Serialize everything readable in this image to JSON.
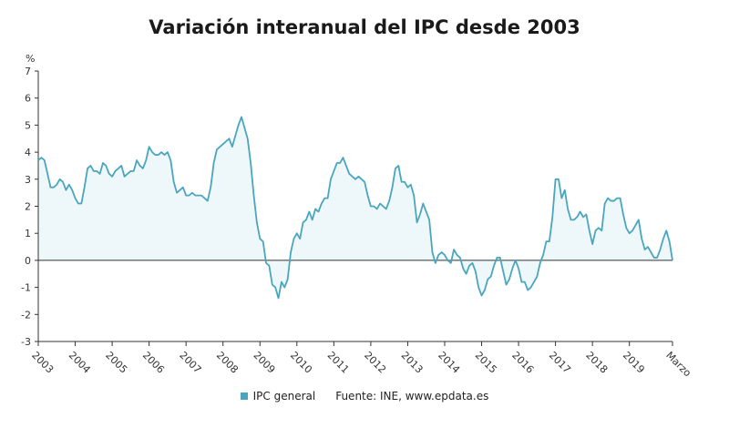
{
  "title": "Variación interanual del IPC desde 2003",
  "legend": {
    "series_label": "IPC general",
    "source": "Fuente: INE, www.epdata.es"
  },
  "colors": {
    "line": "#4aa6bf",
    "fill": "#eef7fa",
    "axis": "#333333",
    "zero": "#333333"
  },
  "chart_data": {
    "type": "area",
    "title": "Variación interanual del IPC desde 2003",
    "ylabel": "%",
    "ylim": [
      -3,
      7
    ],
    "yticks": [
      -3,
      -2,
      -1,
      0,
      1,
      2,
      3,
      4,
      5,
      6,
      7
    ],
    "grid": false,
    "legend_position": "bottom",
    "x_tick_labels": [
      "2003",
      "2004",
      "2005",
      "2006",
      "2007",
      "2008",
      "2009",
      "2010",
      "2011",
      "2012",
      "2013",
      "2014",
      "2015",
      "2016",
      "2017",
      "2018",
      "2019",
      "Marzo"
    ],
    "x_start": "2003-01",
    "x_end": "2020-03",
    "series": [
      {
        "name": "IPC general",
        "values": [
          3.7,
          3.8,
          3.7,
          3.2,
          2.7,
          2.7,
          2.8,
          3.0,
          2.9,
          2.6,
          2.8,
          2.6,
          2.3,
          2.1,
          2.1,
          2.7,
          3.4,
          3.5,
          3.3,
          3.3,
          3.2,
          3.6,
          3.5,
          3.2,
          3.1,
          3.3,
          3.4,
          3.5,
          3.1,
          3.2,
          3.3,
          3.3,
          3.7,
          3.5,
          3.4,
          3.7,
          4.2,
          4.0,
          3.9,
          3.9,
          4.0,
          3.9,
          4.0,
          3.7,
          2.9,
          2.5,
          2.6,
          2.7,
          2.4,
          2.4,
          2.5,
          2.4,
          2.4,
          2.4,
          2.3,
          2.2,
          2.7,
          3.6,
          4.1,
          4.2,
          4.3,
          4.4,
          4.5,
          4.2,
          4.6,
          5.0,
          5.3,
          4.9,
          4.5,
          3.6,
          2.4,
          1.4,
          0.8,
          0.7,
          -0.1,
          -0.2,
          -0.9,
          -1.0,
          -1.4,
          -0.8,
          -1.0,
          -0.7,
          0.3,
          0.8,
          1.0,
          0.8,
          1.4,
          1.5,
          1.8,
          1.5,
          1.9,
          1.8,
          2.1,
          2.3,
          2.3,
          3.0,
          3.3,
          3.6,
          3.6,
          3.8,
          3.5,
          3.2,
          3.1,
          3.0,
          3.1,
          3.0,
          2.9,
          2.4,
          2.0,
          2.0,
          1.9,
          2.1,
          2.0,
          1.9,
          2.2,
          2.7,
          3.4,
          3.5,
          2.9,
          2.9,
          2.7,
          2.8,
          2.4,
          1.4,
          1.7,
          2.1,
          1.8,
          1.5,
          0.3,
          -0.1,
          0.2,
          0.3,
          0.2,
          0.0,
          -0.1,
          0.4,
          0.2,
          0.1,
          -0.3,
          -0.5,
          -0.2,
          -0.1,
          -0.4,
          -1.0,
          -1.3,
          -1.1,
          -0.7,
          -0.6,
          -0.2,
          0.1,
          0.1,
          -0.4,
          -0.9,
          -0.7,
          -0.3,
          0.0,
          -0.3,
          -0.8,
          -0.8,
          -1.1,
          -1.0,
          -0.8,
          -0.6,
          -0.1,
          0.2,
          0.7,
          0.7,
          1.6,
          3.0,
          3.0,
          2.3,
          2.6,
          1.9,
          1.5,
          1.5,
          1.6,
          1.8,
          1.6,
          1.7,
          1.1,
          0.6,
          1.1,
          1.2,
          1.1,
          2.1,
          2.3,
          2.2,
          2.2,
          2.3,
          2.3,
          1.7,
          1.2,
          1.0,
          1.1,
          1.3,
          1.5,
          0.8,
          0.4,
          0.5,
          0.3,
          0.1,
          0.1,
          0.4,
          0.8,
          1.1,
          0.7,
          0.0
        ]
      }
    ]
  }
}
